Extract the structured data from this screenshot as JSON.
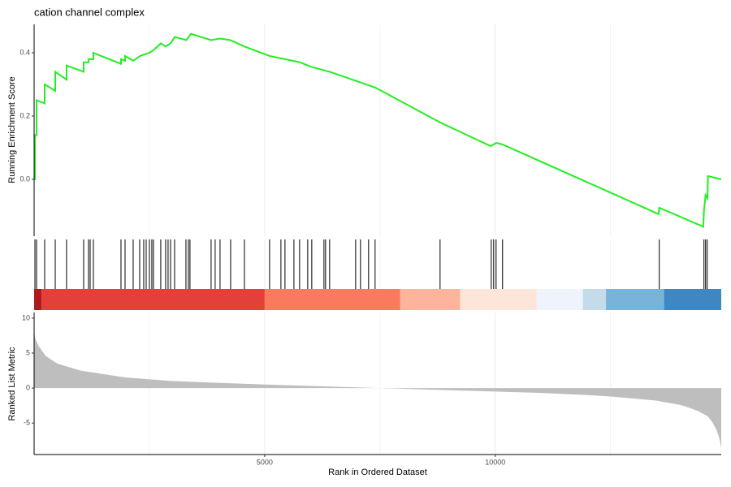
{
  "chart_data": [
    {
      "type": "line",
      "title": "cation channel complex",
      "ylabel": "Running Enrichment Score",
      "color": "#22ee22",
      "x": [
        0,
        18,
        18,
        53,
        53,
        229,
        229,
        458,
        458,
        704,
        704,
        1074,
        1074,
        1180,
        1180,
        1285,
        1285,
        1884,
        1884,
        1972,
        1972,
        2148,
        2300,
        2500,
        2600,
        2750,
        2850,
        2960,
        3050,
        3300,
        3400,
        3840,
        4030,
        4260,
        4560,
        5106,
        5440,
        5760,
        6020,
        6410,
        7400,
        8800,
        9900,
        10020,
        10160,
        13540,
        13556,
        14510,
        14525,
        14560,
        14600,
        14612,
        14900
      ],
      "values": [
        0,
        0,
        0.14,
        0.14,
        0.25,
        0.24,
        0.3,
        0.28,
        0.34,
        0.315,
        0.36,
        0.34,
        0.37,
        0.37,
        0.38,
        0.38,
        0.4,
        0.365,
        0.38,
        0.375,
        0.39,
        0.375,
        0.39,
        0.4,
        0.41,
        0.43,
        0.42,
        0.43,
        0.45,
        0.44,
        0.46,
        0.44,
        0.445,
        0.44,
        0.42,
        0.39,
        0.38,
        0.37,
        0.355,
        0.34,
        0.29,
        0.18,
        0.105,
        0.115,
        0.11,
        -0.11,
        -0.09,
        -0.15,
        -0.1,
        -0.05,
        -0.06,
        0.01,
        0
      ],
      "xlim": [
        0,
        14900
      ],
      "ylim": [
        -0.18,
        0.49
      ],
      "yticks": [
        {
          "value": 0,
          "label": "0.0"
        },
        0.2,
        0.4
      ],
      "x_minor_grid": [
        2500,
        7500,
        12500
      ],
      "xticks": [
        5000,
        10000
      ]
    },
    {
      "type": "rug",
      "color": "#000000",
      "x": [
        18,
        53,
        229,
        458,
        704,
        1074,
        1180,
        1215,
        1285,
        1884,
        1972,
        2148,
        2289,
        2377,
        2430,
        2500,
        2553,
        2588,
        2746,
        2852,
        2905,
        2958,
        3046,
        3292,
        3345,
        3380,
        3838,
        3926,
        4032,
        4261,
        4560,
        5106,
        5352,
        5440,
        5634,
        5757,
        5933,
        6021,
        6285,
        6320,
        6408,
        6972,
        7077,
        7253,
        7394,
        8803,
        9912,
        9965,
        10018,
        10158,
        13556,
        14525,
        14560,
        14595
      ],
      "band_edges": [
        0,
        160,
        5000,
        7940,
        9240,
        10900,
        11900,
        12400,
        13660,
        14900
      ],
      "band_colors": [
        "#b0181d",
        "#e3403a",
        "#fa7a5f",
        "#fdb49c",
        "#fde5da",
        "#eff3fb",
        "#c4dbea",
        "#78b4d9",
        "#3e87c2"
      ],
      "xlim": [
        0,
        14900
      ],
      "x_minor_grid": [
        2500,
        7500,
        12500
      ],
      "xticks": [
        5000,
        10000
      ]
    },
    {
      "type": "area",
      "ylabel": "Ranked List Metric",
      "xlabel": "Rank in Ordered Dataset",
      "color": "#bebebe",
      "x": [
        0,
        30,
        100,
        250,
        500,
        1000,
        2000,
        3000,
        4000,
        5000,
        6000,
        7000,
        7500,
        8000,
        9000,
        10000,
        11000,
        12000,
        12500,
        13000,
        13500,
        14000,
        14200,
        14400,
        14600,
        14700,
        14800,
        14860,
        14900
      ],
      "values": [
        8.0,
        7.0,
        6.0,
        4.6,
        3.5,
        2.5,
        1.5,
        1.0,
        0.75,
        0.5,
        0.3,
        0.1,
        0.0,
        -0.1,
        -0.3,
        -0.5,
        -0.7,
        -1.0,
        -1.2,
        -1.5,
        -1.8,
        -2.4,
        -2.8,
        -3.3,
        -4.0,
        -4.8,
        -6.0,
        -7.2,
        -8.6
      ],
      "xlim": [
        0,
        14900
      ],
      "ylim": [
        -9.5,
        10.8
      ],
      "yticks": [
        10,
        5,
        0,
        -5
      ],
      "xticks": [
        5000,
        10000
      ],
      "x_minor_grid": [
        2500,
        7500,
        12500
      ]
    }
  ]
}
